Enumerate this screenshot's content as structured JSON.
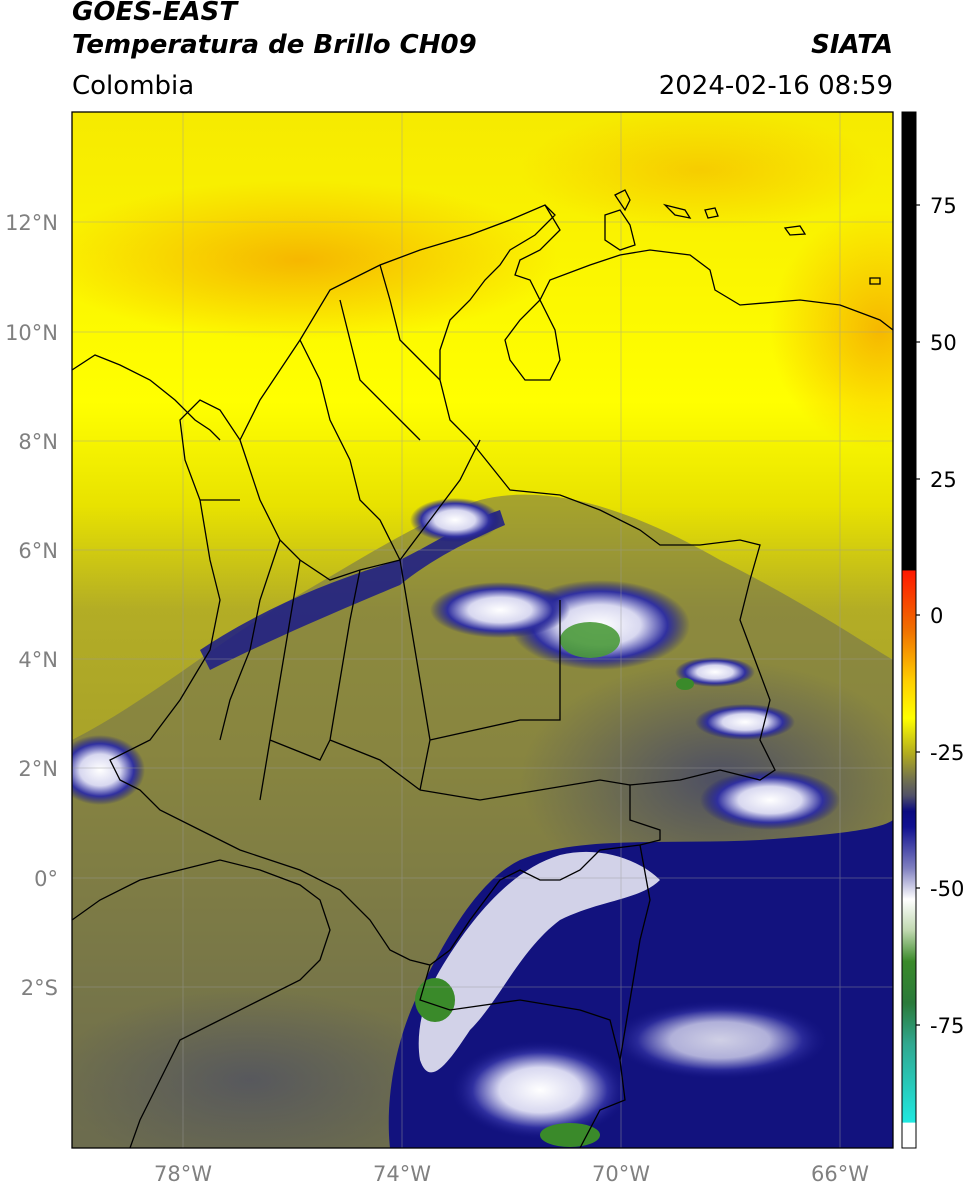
{
  "header": {
    "satellite": "GOES-EAST",
    "product": "Temperatura de Brillo CH09",
    "agency": "SIATA",
    "region": "Colombia",
    "datetime": "2024-02-16 08:59"
  },
  "map": {
    "lon_range": [
      -80.2,
      -65.2
    ],
    "lat_range": [
      -5.0,
      14.0
    ],
    "lon_ticks": [
      "78°W",
      "74°W",
      "70°W",
      "66°W"
    ],
    "lat_ticks": [
      "12°N",
      "10°N",
      "8°N",
      "6°N",
      "4°N",
      "2°N",
      "0°",
      "2°S"
    ],
    "gridlines": true,
    "features": [
      "country borders",
      "department borders",
      "coastline"
    ]
  },
  "colorbar": {
    "ticks": [
      "75",
      "50",
      "25",
      "0",
      "-25",
      "-50",
      "-75"
    ],
    "colors": {
      "hot": "#000000",
      "red": "#ff2000",
      "orange": "#f5a000",
      "yellow": "#ffff00",
      "olive": "#a8a22a",
      "gray": "#55566a",
      "navy": "#101080",
      "white": "#ffffff",
      "green": "#3a8a2a",
      "cyan": "#20e0d8"
    }
  }
}
